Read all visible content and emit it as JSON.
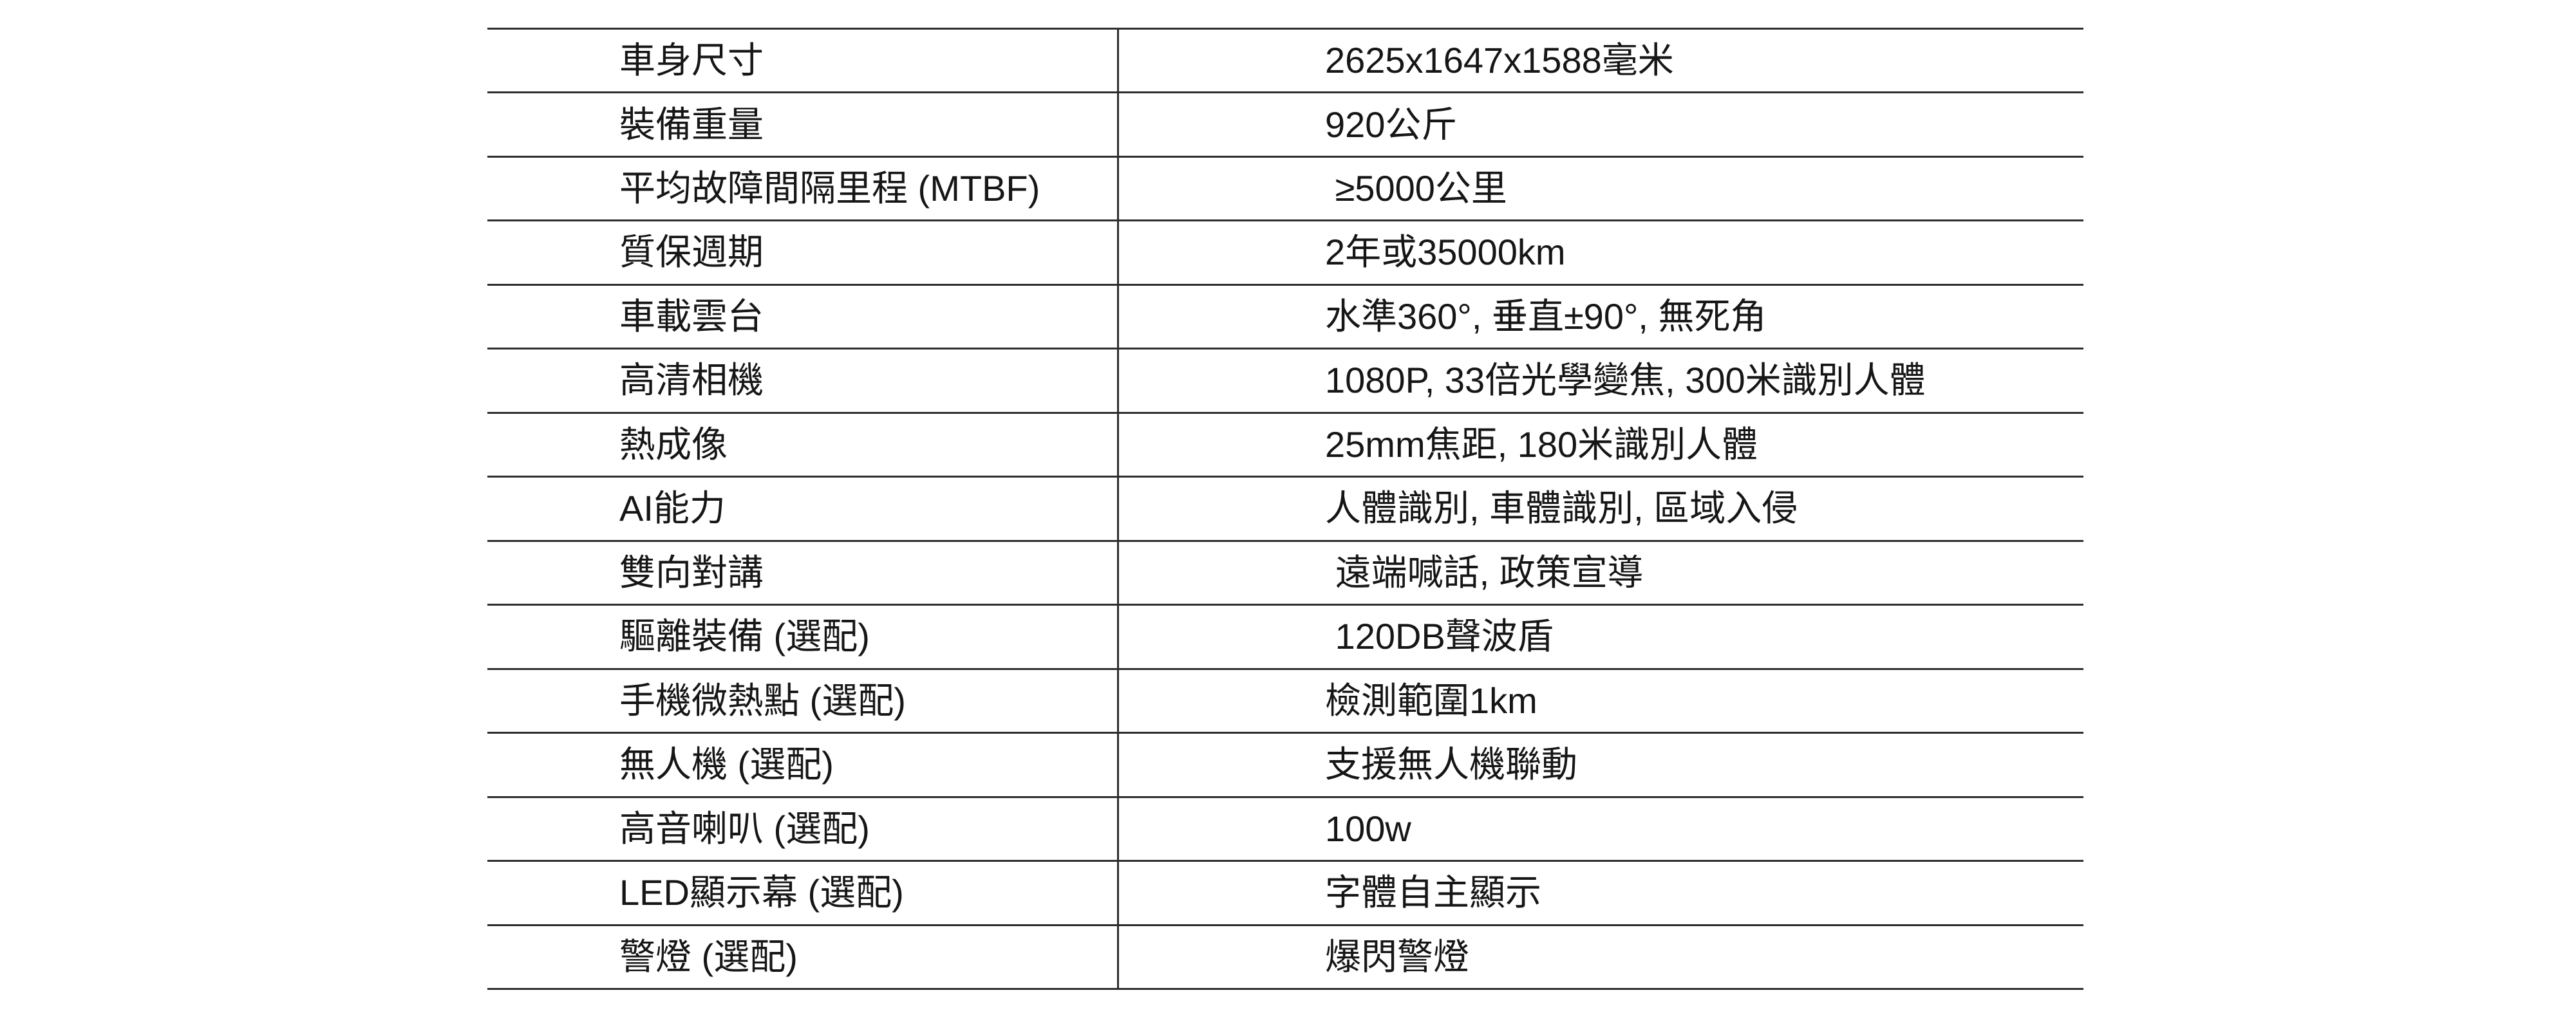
{
  "colors": {
    "background": "#ffffff",
    "text": "#161616",
    "line": "#2d2d2d"
  },
  "table": {
    "rows": [
      {
        "label": "車身尺寸",
        "value": "2625x1647x1588毫米"
      },
      {
        "label": "裝備重量",
        "value": "920公斤"
      },
      {
        "label": "平均故障間隔里程 (MTBF)",
        "value": " ≥5000公里"
      },
      {
        "label": "質保週期",
        "value": "2年或35000km"
      },
      {
        "label": "車載雲台",
        "value": "水準360°, 垂直±90°, 無死角"
      },
      {
        "label": "高清相機",
        "value": "1080P, 33倍光學變焦, 300米識別人體"
      },
      {
        "label": "熱成像",
        "value": "25mm焦距, 180米識別人體"
      },
      {
        "label": "AI能力",
        "value": "人體識別, 車體識別, 區域入侵"
      },
      {
        "label": "雙向對講",
        "value": " 遠端喊話, 政策宣導"
      },
      {
        "label": "驅離裝備 (選配)",
        "value": " 120DB聲波盾"
      },
      {
        "label": "手機微熱點 (選配)",
        "value": "檢測範圍1km"
      },
      {
        "label": "無人機 (選配)",
        "value": "支援無人機聯動"
      },
      {
        "label": "高音喇叭 (選配)",
        "value": "100w"
      },
      {
        "label": "LED顯示幕 (選配)",
        "value": "字體自主顯示"
      },
      {
        "label": "警燈 (選配)",
        "value": "爆閃警燈"
      }
    ]
  }
}
